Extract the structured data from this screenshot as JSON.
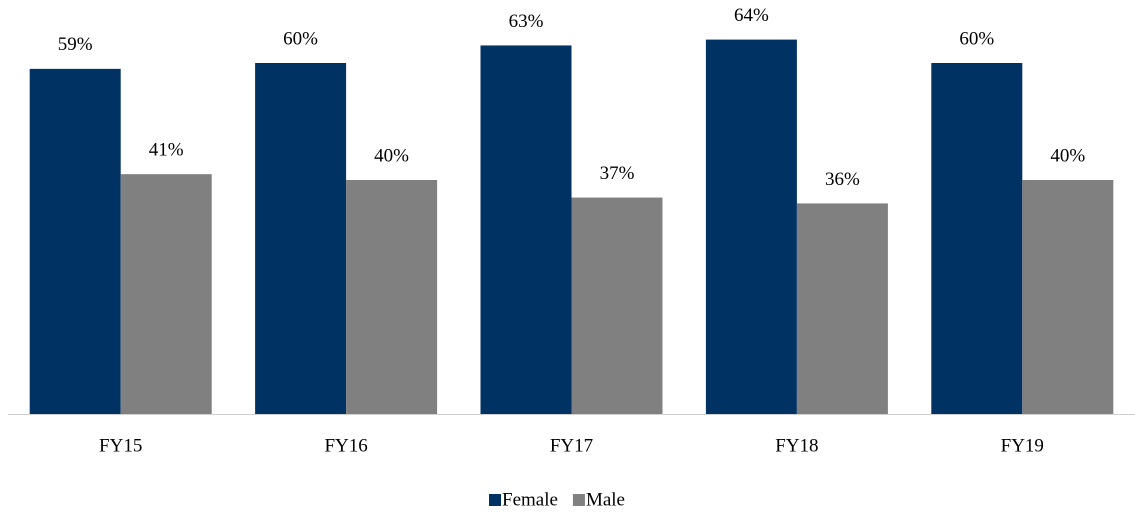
{
  "chart_data": {
    "type": "bar",
    "categories": [
      "FY15",
      "FY16",
      "FY17",
      "FY18",
      "FY19"
    ],
    "series": [
      {
        "name": "Female",
        "color": "#003263",
        "values": [
          59,
          60,
          63,
          64,
          60
        ],
        "value_labels": [
          "59%",
          "60%",
          "63%",
          "64%",
          "60%"
        ]
      },
      {
        "name": "Male",
        "color": "#808080",
        "values": [
          41,
          40,
          37,
          36,
          40
        ],
        "value_labels": [
          "41%",
          "40%",
          "37%",
          "36%",
          "40%"
        ]
      }
    ],
    "legend": "bottom"
  }
}
